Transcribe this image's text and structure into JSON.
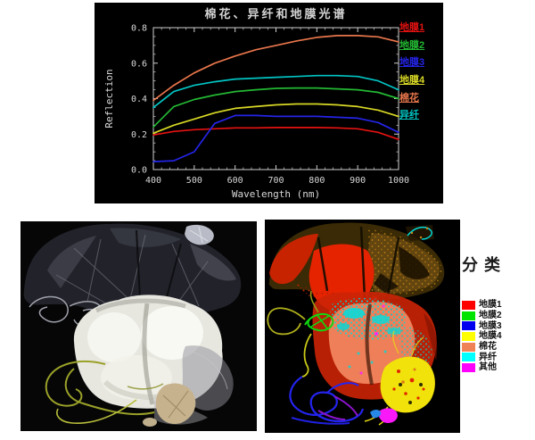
{
  "figure": {
    "background": "#ffffff"
  },
  "chart_data": {
    "type": "line",
    "title": "棉花、异纤和地膜光谱",
    "xlabel": "Wavelength (nm)",
    "ylabel": "Reflection",
    "xlim": [
      400,
      1000
    ],
    "ylim": [
      0.0,
      0.8
    ],
    "xticks": [
      400,
      500,
      600,
      700,
      800,
      900,
      1000
    ],
    "yticks": [
      "0.0",
      "0.2",
      "0.4",
      "0.6",
      "0.8"
    ],
    "x": [
      400,
      450,
      500,
      550,
      600,
      650,
      700,
      750,
      800,
      850,
      900,
      950,
      1000
    ],
    "grid": false,
    "legend_position": "right-outside",
    "panel_bg": "#000000",
    "axis_color": "#cfcfcf",
    "series": [
      {
        "name": "地膜1",
        "color": "#e41212",
        "values": [
          0.195,
          0.215,
          0.225,
          0.23,
          0.235,
          0.235,
          0.237,
          0.237,
          0.237,
          0.235,
          0.23,
          0.21,
          0.17
        ]
      },
      {
        "name": "地膜2",
        "color": "#23b833",
        "values": [
          0.24,
          0.355,
          0.395,
          0.42,
          0.44,
          0.45,
          0.458,
          0.46,
          0.46,
          0.455,
          0.45,
          0.435,
          0.4
        ]
      },
      {
        "name": "地膜3",
        "color": "#2424e8",
        "values": [
          0.045,
          0.05,
          0.1,
          0.26,
          0.305,
          0.305,
          0.3,
          0.3,
          0.3,
          0.295,
          0.29,
          0.265,
          0.21
        ]
      },
      {
        "name": "地膜4",
        "color": "#d8d826",
        "values": [
          0.205,
          0.25,
          0.285,
          0.32,
          0.345,
          0.355,
          0.365,
          0.37,
          0.37,
          0.365,
          0.355,
          0.335,
          0.3
        ]
      },
      {
        "name": "棉花",
        "color": "#e8764c",
        "values": [
          0.39,
          0.475,
          0.545,
          0.6,
          0.64,
          0.675,
          0.7,
          0.725,
          0.745,
          0.755,
          0.755,
          0.748,
          0.72
        ]
      },
      {
        "name": "异纤",
        "color": "#00c4c4",
        "values": [
          0.35,
          0.44,
          0.475,
          0.495,
          0.51,
          0.515,
          0.52,
          0.525,
          0.53,
          0.53,
          0.525,
          0.5,
          0.45
        ]
      }
    ]
  },
  "classification": {
    "title": "分类",
    "classes": [
      {
        "label": "地膜1",
        "color": "#ff0000"
      },
      {
        "label": "地膜2",
        "color": "#00e400"
      },
      {
        "label": "地膜3",
        "color": "#0000ee"
      },
      {
        "label": "地膜4",
        "color": "#ffff00"
      },
      {
        "label": "棉花",
        "color": "#f08356"
      },
      {
        "label": "异纤",
        "color": "#00ffff"
      },
      {
        "label": "其他",
        "color": "#ff00ff"
      }
    ]
  }
}
